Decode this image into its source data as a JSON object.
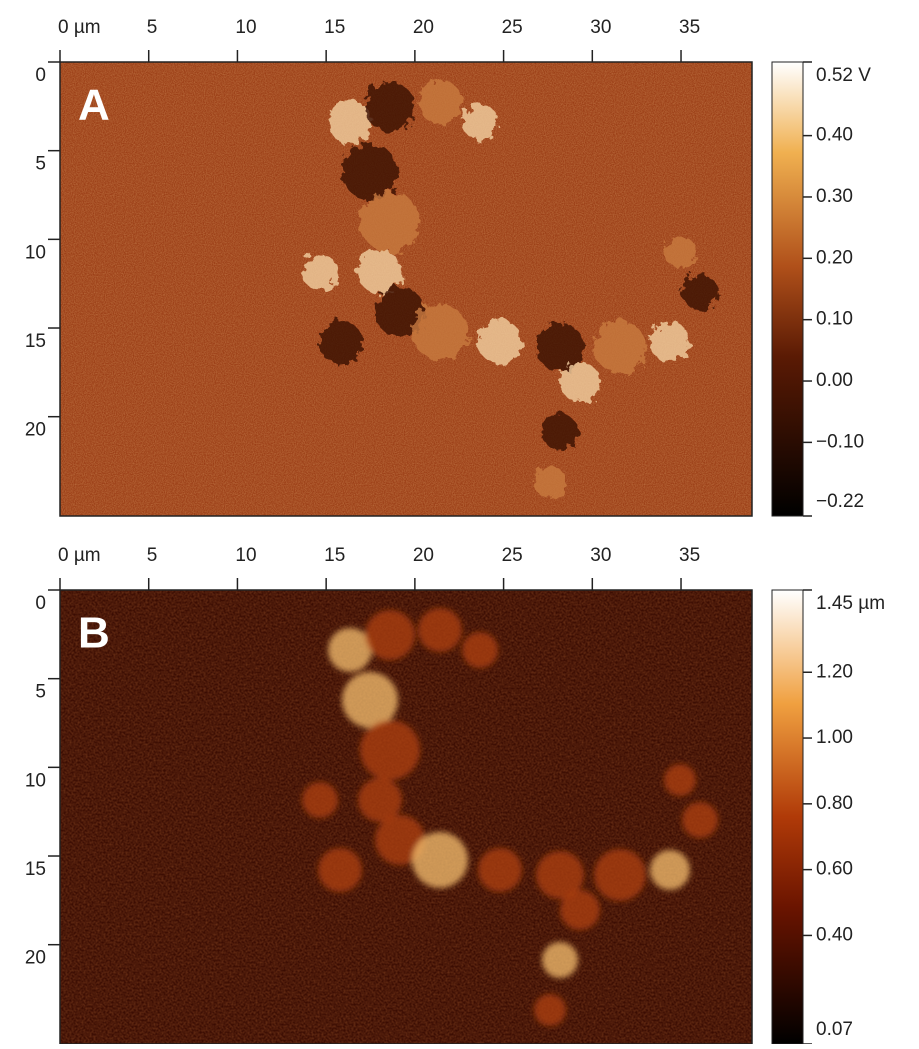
{
  "panels": [
    {
      "label": "A",
      "xlim": [
        0,
        39
      ],
      "ylim": [
        0,
        25.6
      ],
      "x_ticks": [
        {
          "value": 0,
          "label": "0 µm"
        },
        5,
        10,
        15,
        20,
        25,
        30,
        35
      ],
      "y_ticks": [
        0,
        5,
        10,
        15,
        20
      ],
      "colorbar": {
        "lim": [
          -0.22,
          0.52
        ],
        "ticks": [
          {
            "value": 0.52,
            "label": "0.52 V"
          },
          {
            "value": 0.4,
            "label": "0.40"
          },
          {
            "value": 0.3,
            "label": "0.30"
          },
          {
            "value": 0.2,
            "label": "0.20"
          },
          {
            "value": 0.1,
            "label": "0.10"
          },
          {
            "value": 0,
            "label": "0.00"
          },
          {
            "value": -0.1,
            "label": "−0.10"
          },
          {
            "value": -0.22,
            "label": "−0.22"
          }
        ]
      }
    },
    {
      "label": "B",
      "xlim": [
        0,
        39
      ],
      "ylim": [
        0,
        25.6
      ],
      "x_ticks": [
        {
          "value": 0,
          "label": "0 µm"
        },
        5,
        10,
        15,
        20,
        25,
        30,
        35
      ],
      "y_ticks": [
        0,
        5,
        10,
        15,
        20
      ],
      "colorbar": {
        "lim": [
          0.07,
          1.45
        ],
        "ticks": [
          {
            "value": 1.45,
            "label": "1.45 µm"
          },
          {
            "value": 1.2,
            "label": "1.20"
          },
          {
            "value": 1,
            "label": "1.00"
          },
          {
            "value": 0.8,
            "label": "0.80"
          },
          {
            "value": 0.6,
            "label": "0.60"
          },
          {
            "value": 0.4,
            "label": "0.40"
          },
          {
            "value": 0.07,
            "label": "0.07"
          }
        ]
      }
    }
  ]
}
